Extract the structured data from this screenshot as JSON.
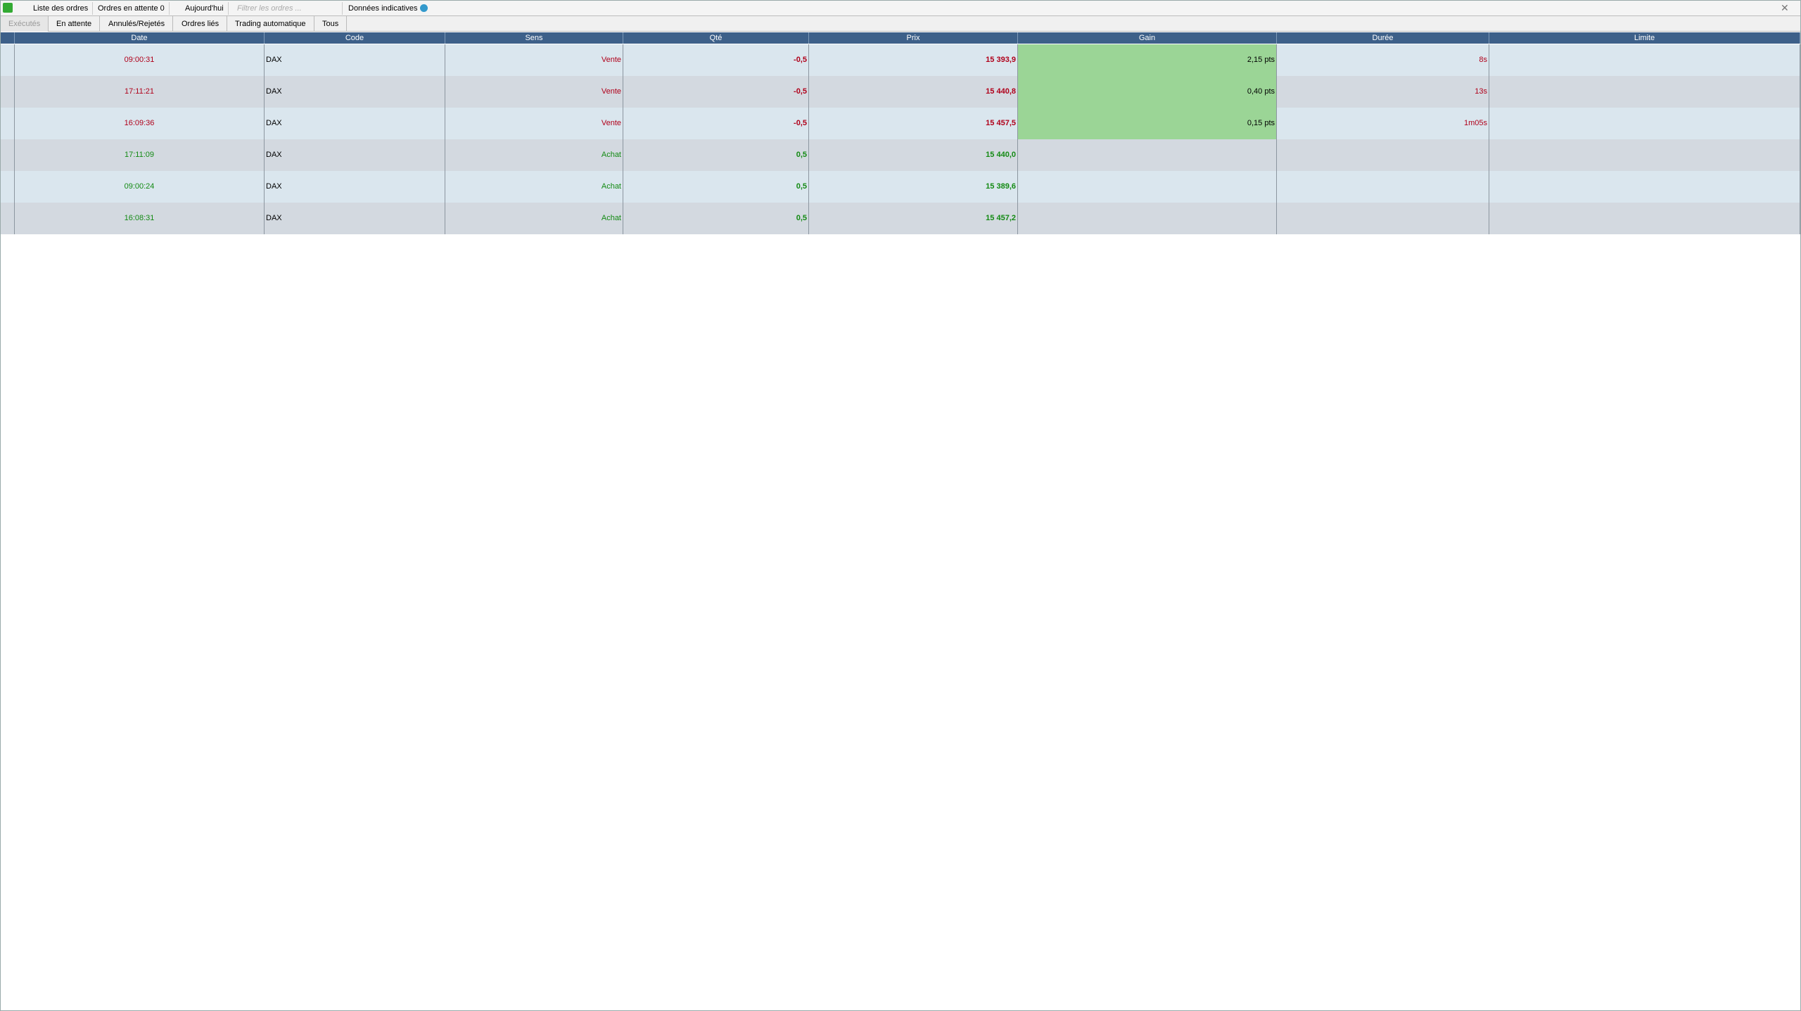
{
  "toolbar": {
    "title": "Liste des ordres",
    "pending": "Ordres en attente 0",
    "period": "Aujourd'hui",
    "filter_placeholder": "Filtrer les ordres ...",
    "data_note": "Données indicatives"
  },
  "tabs": [
    "Exécutés",
    "En attente",
    "Annulés/Rejetés",
    "Ordres liés",
    "Trading automatique",
    "Tous"
  ],
  "table": {
    "columns": [
      "Date",
      "Code",
      "Sens",
      "Qté",
      "Prix",
      "Gain",
      "Durée",
      "Limite"
    ],
    "rows": [
      {
        "color": "#b0001a",
        "cells": [
          "09:00:31",
          "DAX",
          "Vente",
          "-0,5",
          "15 393,9",
          "2,15 pts",
          "8s",
          null
        ]
      },
      {
        "color": "#b0001a",
        "cells": [
          "17:11:21",
          "DAX",
          "Vente",
          "-0,5",
          "15 440,8",
          "0,40 pts",
          "13s",
          null
        ]
      },
      {
        "color": "#b0001a",
        "cells": [
          "16:09:36",
          "DAX",
          "Vente",
          "-0,5",
          "15 457,5",
          "0,15 pts",
          "1m05s",
          null
        ]
      },
      {
        "color": "#138a13",
        "cells": [
          "17:11:09",
          "DAX",
          "Achat",
          "0,5",
          "15 440,0",
          null,
          null,
          null
        ]
      },
      {
        "color": "#138a13",
        "cells": [
          "09:00:24",
          "DAX",
          "Achat",
          "0,5",
          "15 389,6",
          null,
          null,
          null
        ]
      },
      {
        "color": "#138a13",
        "cells": [
          "16:08:31",
          "DAX",
          "Achat",
          "0,5",
          "15 457,2",
          null,
          null,
          null
        ]
      }
    ]
  }
}
